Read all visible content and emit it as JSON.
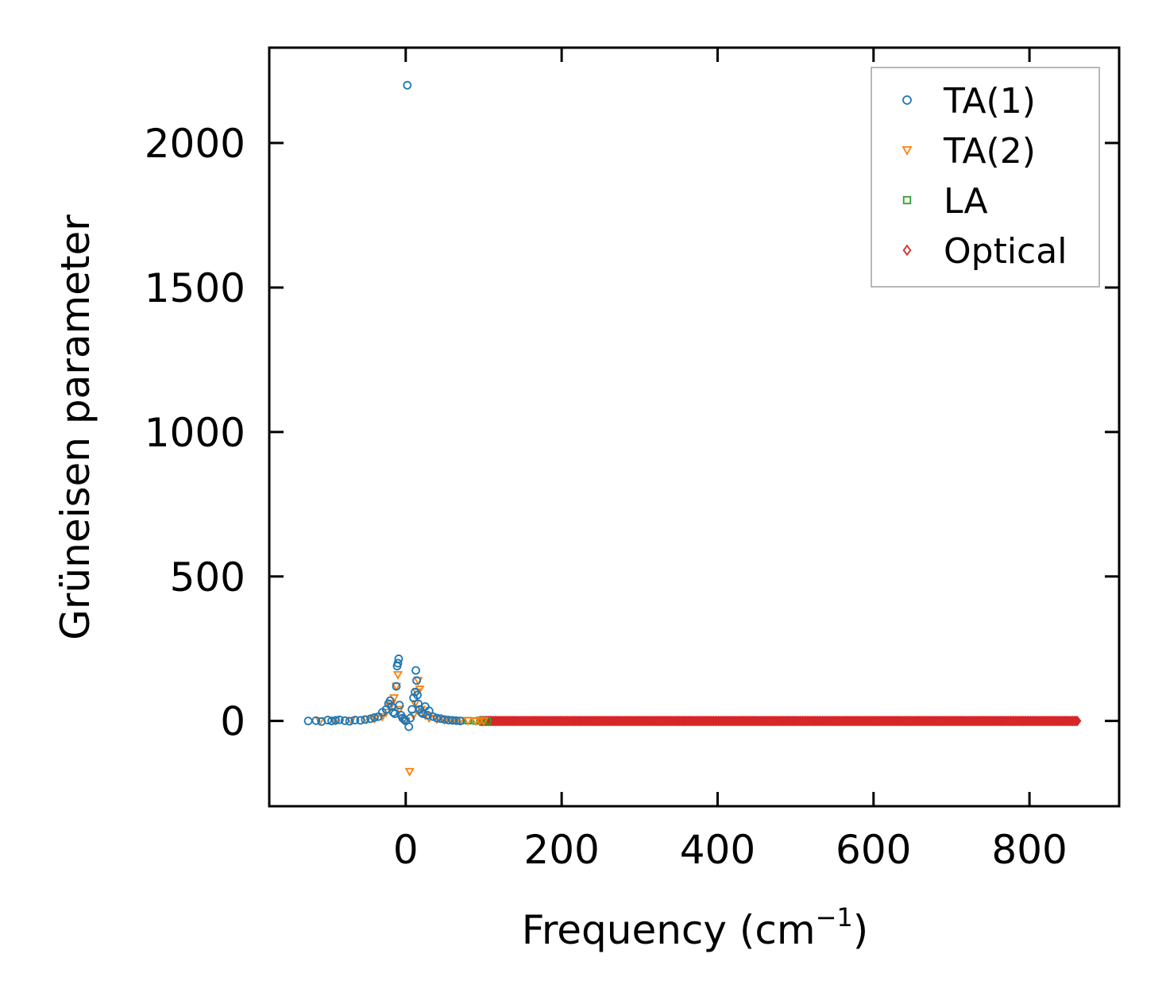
{
  "chart_data": {
    "type": "scatter",
    "title": "",
    "xlabel": "Frequency (cm",
    "xlabel_sup": "−1",
    "xlabel_end": ")",
    "ylabel": "Grüneisen parameter",
    "xlim": [
      -175,
      915
    ],
    "ylim": [
      -295,
      2330
    ],
    "xticks": [
      0,
      200,
      400,
      600,
      800
    ],
    "xtick_labels": [
      "0",
      "200",
      "400",
      "600",
      "800"
    ],
    "yticks": [
      0,
      500,
      1000,
      1500,
      2000
    ],
    "ytick_labels": [
      "0",
      "500",
      "1000",
      "1500",
      "2000"
    ],
    "grid": false,
    "legend_position": "top-right",
    "series": [
      {
        "name": "TA(1)",
        "marker": "circle",
        "color": "#1f77b4",
        "x": [
          -125,
          -115,
          -108,
          -100,
          -95,
          -90,
          -85,
          -78,
          -72,
          -65,
          -58,
          -52,
          -45,
          -40,
          -35,
          -30,
          -25,
          -22,
          -20,
          -18,
          -16,
          -14,
          -12,
          -11,
          -10,
          -9,
          -8,
          -6,
          -4,
          -2,
          0,
          2,
          4,
          6,
          8,
          10,
          12,
          13,
          14,
          15,
          16,
          18,
          20,
          22,
          25,
          28,
          30,
          35,
          40,
          45,
          50,
          55,
          60,
          65,
          70
        ],
        "y": [
          0,
          1,
          -2,
          3,
          0,
          2,
          4,
          1,
          -1,
          3,
          2,
          5,
          8,
          12,
          15,
          30,
          40,
          60,
          70,
          50,
          30,
          25,
          120,
          190,
          200,
          215,
          55,
          20,
          10,
          5,
          0,
          2200,
          -20,
          10,
          40,
          80,
          100,
          175,
          140,
          90,
          60,
          40,
          30,
          25,
          50,
          20,
          35,
          15,
          10,
          8,
          5,
          3,
          2,
          1,
          0
        ]
      },
      {
        "name": "TA(2)",
        "marker": "triangle-down",
        "color": "#ff7f0e",
        "x": [
          -110,
          -90,
          -70,
          -50,
          -40,
          -30,
          -25,
          -20,
          -18,
          -15,
          -12,
          -10,
          -8,
          -5,
          0,
          5,
          10,
          12,
          14,
          16,
          18,
          20,
          25,
          30,
          40,
          50,
          60,
          70,
          80,
          90,
          95,
          100
        ],
        "y": [
          0,
          1,
          2,
          5,
          8,
          15,
          30,
          50,
          60,
          80,
          120,
          160,
          40,
          10,
          0,
          -175,
          20,
          60,
          100,
          140,
          110,
          40,
          20,
          10,
          6,
          4,
          3,
          2,
          1,
          0,
          1,
          0
        ]
      },
      {
        "name": "LA",
        "marker": "square",
        "color": "#2ca02c",
        "x": [
          60,
          70,
          80,
          90,
          95,
          100,
          105
        ],
        "y": [
          2,
          1,
          1,
          0,
          2,
          1,
          0
        ]
      },
      {
        "name": "Optical",
        "marker": "diamond",
        "color": "#d62728",
        "x_range": [
          95,
          862
        ],
        "y": 0
      }
    ]
  }
}
